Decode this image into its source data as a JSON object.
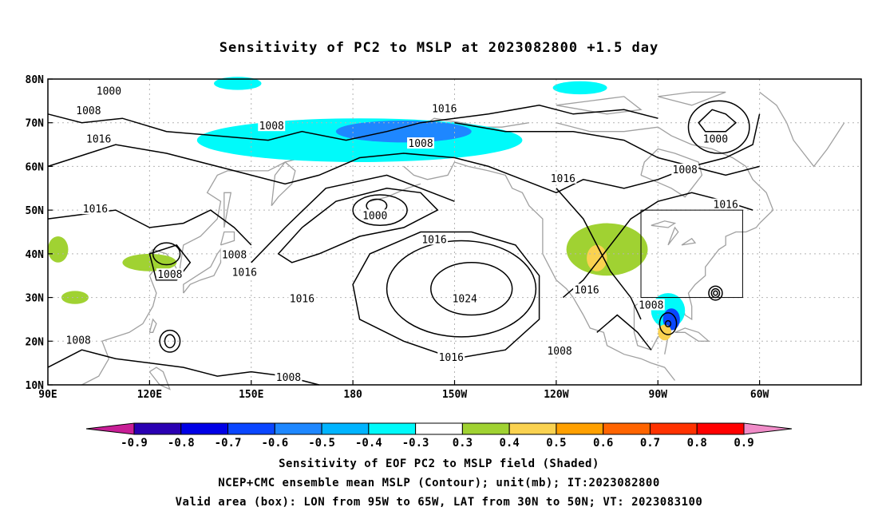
{
  "title": "Sensitivity of PC2 to MSLP at 2023082800 +1.5 day",
  "axes": {
    "lon_ticks": [
      "90E",
      "120E",
      "150E",
      "180",
      "150W",
      "120W",
      "90W",
      "60W"
    ],
    "lat_ticks": [
      "80N",
      "70N",
      "60N",
      "50N",
      "40N",
      "30N",
      "20N",
      "10N"
    ]
  },
  "valid_box": {
    "lon_min": -95,
    "lon_max": -65,
    "lat_min": 30,
    "lat_max": 50
  },
  "contour_labels": [
    {
      "text": "1000",
      "lon": 108,
      "lat": 77
    },
    {
      "text": "1008",
      "lon": 102,
      "lat": 72.5
    },
    {
      "text": "1008",
      "lon": 156,
      "lat": 69
    },
    {
      "text": "1016",
      "lon": -153,
      "lat": 73
    },
    {
      "text": "1016",
      "lon": 105,
      "lat": 66
    },
    {
      "text": "1008",
      "lon": -160,
      "lat": 65
    },
    {
      "text": "1000",
      "lon": -73,
      "lat": 66
    },
    {
      "text": "1008",
      "lon": -82,
      "lat": 59
    },
    {
      "text": "1016",
      "lon": -118,
      "lat": 57
    },
    {
      "text": "1016",
      "lon": -70,
      "lat": 51
    },
    {
      "text": "1016",
      "lon": 104,
      "lat": 50
    },
    {
      "text": "1000",
      "lon": -173.5,
      "lat": 48.5
    },
    {
      "text": "1016",
      "lon": -156,
      "lat": 43
    },
    {
      "text": "1008",
      "lon": 145,
      "lat": 39.5
    },
    {
      "text": "1008",
      "lon": 126,
      "lat": 35
    },
    {
      "text": "1016",
      "lon": 148,
      "lat": 35.5
    },
    {
      "text": "1016",
      "lon": 165,
      "lat": 29.5
    },
    {
      "text": "1024",
      "lon": -147,
      "lat": 29.5
    },
    {
      "text": "1016",
      "lon": -111,
      "lat": 31.5
    },
    {
      "text": "1008",
      "lon": -92,
      "lat": 28
    },
    {
      "text": "1008",
      "lon": 99,
      "lat": 20
    },
    {
      "text": "1008",
      "lon": -119,
      "lat": 17.5
    },
    {
      "text": "1016",
      "lon": -151,
      "lat": 16
    },
    {
      "text": "1008",
      "lon": 161,
      "lat": 11.5
    }
  ],
  "colorbar": {
    "labels": [
      "-0.9",
      "-0.8",
      "-0.7",
      "-0.6",
      "-0.5",
      "-0.4",
      "-0.3",
      "0.3",
      "0.4",
      "0.5",
      "0.6",
      "0.7",
      "0.8",
      "0.9"
    ],
    "colors": [
      "#2a00b2",
      "#0000e6",
      "#0a46ff",
      "#1e87ff",
      "#00b4ff",
      "#00fafa",
      "#ffffff",
      "#a0d232",
      "#fad250",
      "#ffa000",
      "#ff6400",
      "#ff3200",
      "#ff0000"
    ],
    "low_color": "#c81e96",
    "high_color": "#f08cc8"
  },
  "shaded_areas": [
    {
      "name": "Bering low sensitivity",
      "color": "#00fafa",
      "lon": -178,
      "lat": 66,
      "rx": 48,
      "ry": 5
    },
    {
      "name": "Bering core",
      "color": "#1e87ff",
      "lon": -165,
      "lat": 68,
      "rx": 20,
      "ry": 2.5
    },
    {
      "name": "Arctic shade",
      "color": "#00fafa",
      "lon": -113,
      "lat": 78,
      "rx": 8,
      "ry": 1.5
    },
    {
      "name": "Kamchatka shade",
      "color": "#00fafa",
      "lon": 146,
      "lat": 79,
      "rx": 7,
      "ry": 1.5
    },
    {
      "name": "Great Lakes positive",
      "color": "#a0d232",
      "lon": -105,
      "lat": 41,
      "rx": 12,
      "ry": 6
    },
    {
      "name": "Great Lakes core",
      "color": "#fad250",
      "lon": -108,
      "lat": 39,
      "rx": 3,
      "ry": 3
    },
    {
      "name": "Hurricane negative",
      "color": "#00fafa",
      "lon": -87,
      "lat": 27,
      "rx": 5,
      "ry": 4
    },
    {
      "name": "Hurricane core",
      "color": "#0a46ff",
      "lon": -86,
      "lat": 25,
      "rx": 2.5,
      "ry": 2.5
    },
    {
      "name": "Gulf positive",
      "color": "#fad250",
      "lon": -88,
      "lat": 22,
      "rx": 2,
      "ry": 1.8
    },
    {
      "name": "Asia positive",
      "color": "#a0d232",
      "lon": 120,
      "lat": 38,
      "rx": 8,
      "ry": 2
    },
    {
      "name": "Asia positive 2",
      "color": "#a0d232",
      "lon": 98,
      "lat": 30,
      "rx": 4,
      "ry": 1.5
    },
    {
      "name": "Asia positive 3",
      "color": "#a0d232",
      "lon": 93,
      "lat": 41,
      "rx": 3,
      "ry": 3
    }
  ],
  "captions": [
    "Sensitivity of EOF PC2 to MSLP field (Shaded)",
    "NCEP+CMC ensemble mean MSLP (Contour); unit(mb); IT:2023082800",
    "Valid area (box): LON from 95W to 65W, LAT from 30N to 50N; VT: 2023083100"
  ]
}
